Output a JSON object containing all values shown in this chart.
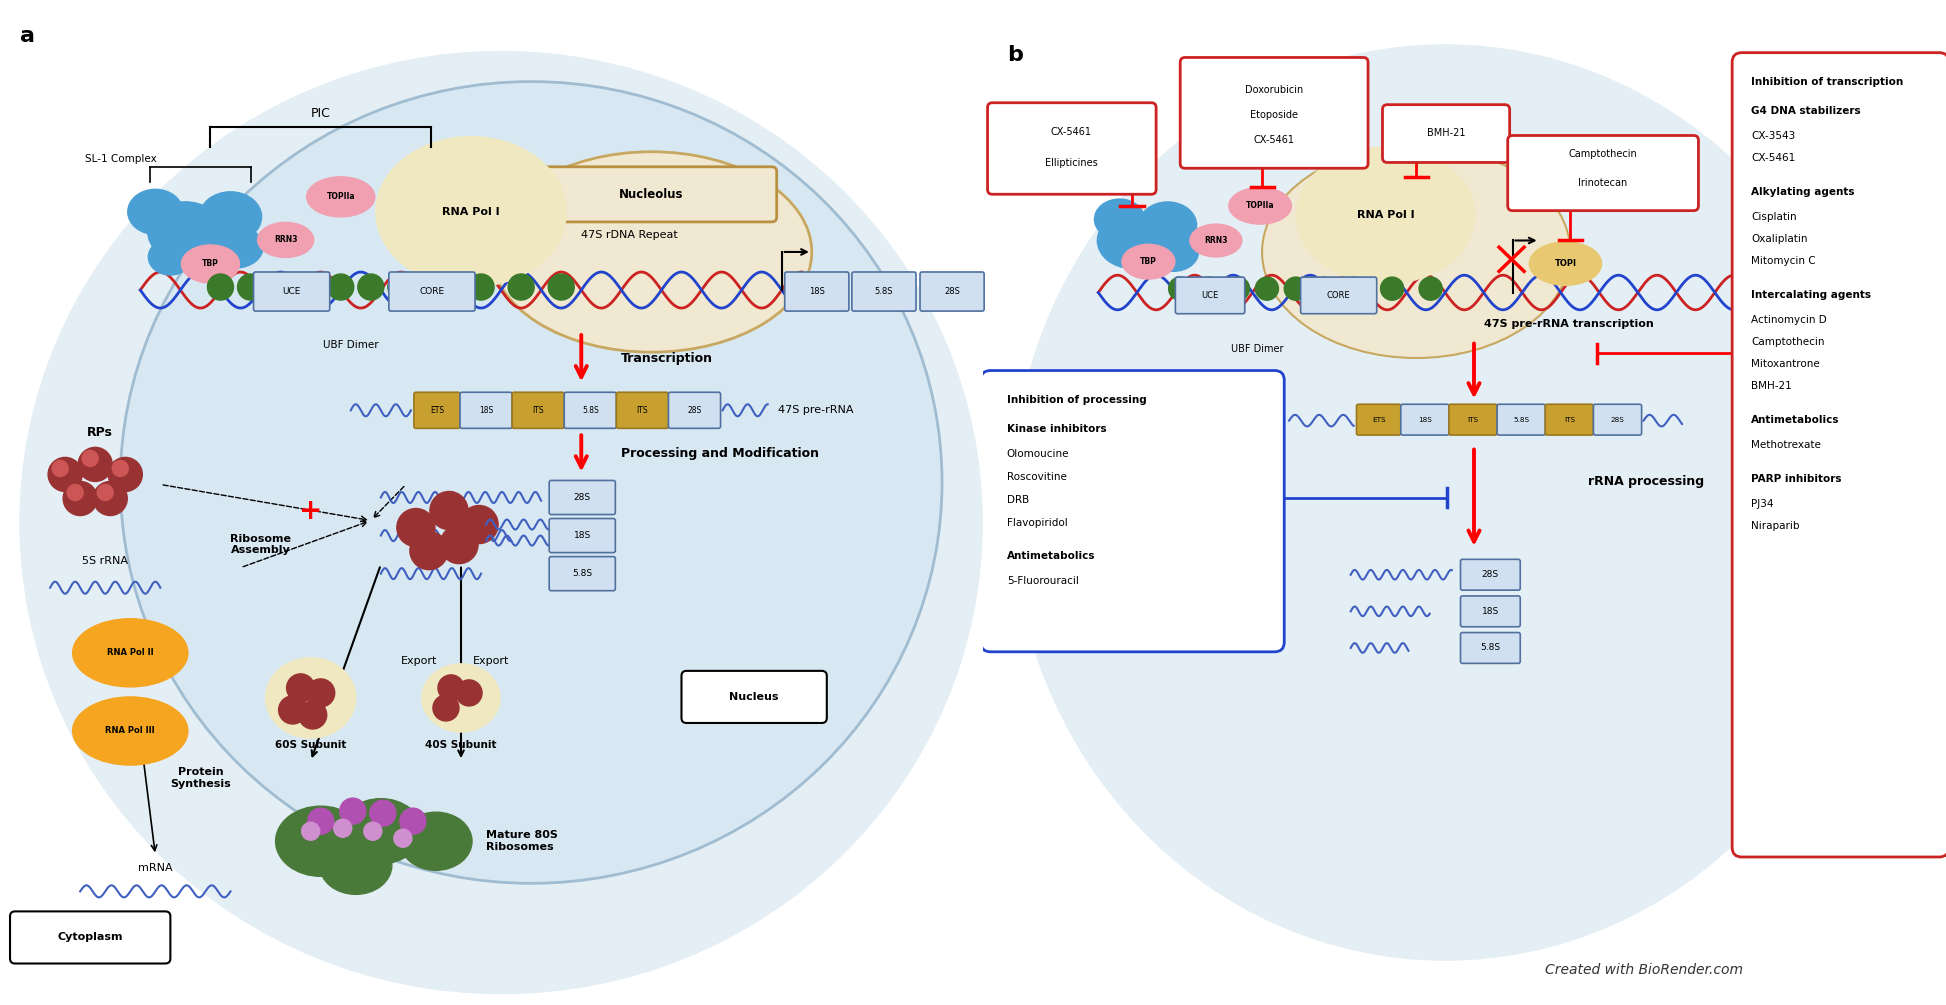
{
  "background_color": "#ffffff",
  "panel_a": {
    "label": "a",
    "nucleolus_label": "Nucleolus",
    "nucleus_label": "Nucleus",
    "cytoplasm_label": "Cytoplasm",
    "pic_label": "PIC",
    "sl1_label": "SL-1 Complex",
    "ubf_label": "UBF Dimer",
    "rna_pol1_label": "RNA Pol I",
    "topIIa_label": "TOPIIa",
    "rrn3_label": "RRN3",
    "tbp_label": "TBP",
    "uce_label": "UCE",
    "core_label": "CORE",
    "rna_pol2_label": "RNA Pol II",
    "rna_pol3_label": "RNA Pol III",
    "repeat_label": "47S rDNA Repeat",
    "transcription_label": "Transcription",
    "processing_label": "Processing and Modification",
    "prerRNA_label": "47S pre-rRNA",
    "ribosome_label": "Ribosome\nAssembly",
    "export_label": "Export",
    "export2_label": "Export",
    "protein_label": "Protein\nSynthesis",
    "mrna_label": "mRNA",
    "mature_label": "Mature 80S\nRibosomes",
    "rps_label": "RPs",
    "s5_label": "5S rRNA",
    "subunit60_label": "60S Subunit",
    "subunit40_label": "40S Subunit",
    "pre_rna_labels": [
      "ETS",
      "18S",
      "ITS",
      "5.8S",
      "ITS",
      "28S"
    ],
    "processed_labels": [
      "28S",
      "18S",
      "5.8S"
    ]
  },
  "panel_b": {
    "label": "b",
    "topIIa_label": "TOPIIa",
    "rrn3_label": "RRN3",
    "tbp_label": "TBP",
    "rna_pol1_label": "RNA Pol I",
    "uce_label": "UCE",
    "core_label": "CORE",
    "ubf_label": "UBF Dimer",
    "topi_label": "TOPI",
    "pre_rna_transcription": "47S pre-rRNA transcription",
    "rrna_processing": "rRNA processing",
    "pre_rna_labels": [
      "ETS",
      "18S",
      "ITS",
      "5.8S",
      "ITS",
      "28S"
    ],
    "processed_labels": [
      "28S",
      "18S",
      "5.8S"
    ],
    "right_box_title": "Inhibition of transcription",
    "right_sections": [
      {
        "title": "G4 DNA stabilizers",
        "items": [
          "CX-3543",
          "CX-5461"
        ]
      },
      {
        "title": "Alkylating agents",
        "items": [
          "Cisplatin",
          "Oxaliplatin",
          "Mitomycin C"
        ]
      },
      {
        "title": "Intercalating agents",
        "items": [
          "Actinomycin D",
          "Camptothecin",
          "Mitoxantrone",
          "BMH-21"
        ]
      },
      {
        "title": "Antimetabolics",
        "items": [
          "Methotrexate"
        ]
      },
      {
        "title": "PARP inhibitors",
        "items": [
          "PJ34",
          "Niraparib"
        ]
      }
    ],
    "proc_box_title": "Inhibition of processing",
    "proc_sections": [
      {
        "title": "Kinase inhibitors",
        "items": [
          "Olomoucine",
          "Roscovitine",
          "DRB",
          "Flavopiridol"
        ]
      },
      {
        "title": "Antimetabolics",
        "items": [
          "5-Fluorouracil"
        ]
      }
    ]
  },
  "biorender_text": "Created with BioRender.com"
}
